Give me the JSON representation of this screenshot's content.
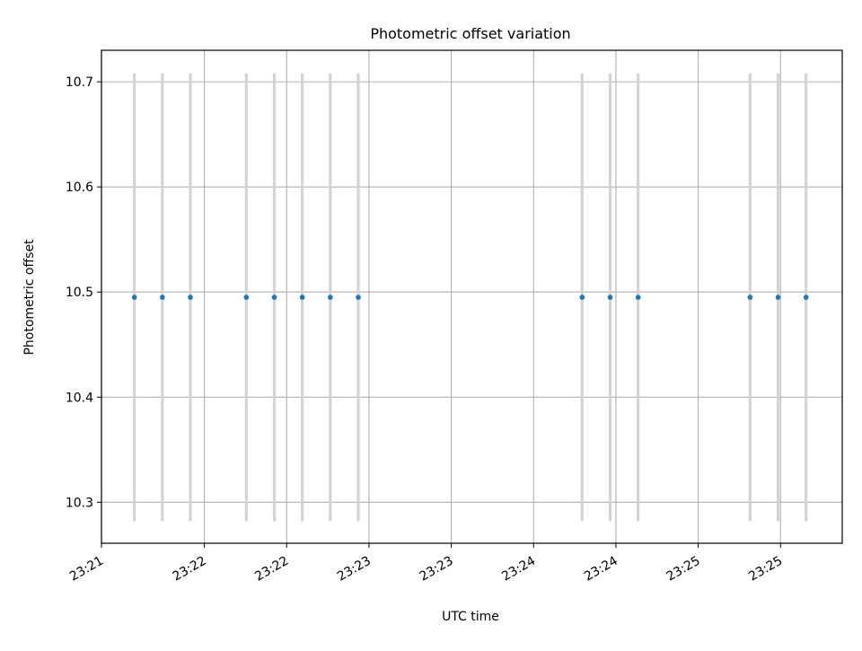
{
  "chart_data": {
    "type": "scatter",
    "title": "Photometric offset variation",
    "xlabel": "UTC time",
    "ylabel": "Photometric offset",
    "x_tick_labels": [
      "23:21",
      "23:22",
      "23:22",
      "23:23",
      "23:23",
      "23:24",
      "23:24",
      "23:25",
      "23:25"
    ],
    "x_tick_minutes": [
      0,
      0.625,
      1.125,
      1.625,
      2.125,
      2.625,
      3.125,
      3.625,
      4.125
    ],
    "xlim_minutes": [
      0,
      4.5
    ],
    "y_ticks": [
      10.3,
      10.4,
      10.5,
      10.6,
      10.7
    ],
    "y_tick_labels": [
      "10.3",
      "10.4",
      "10.5",
      "10.6",
      "10.7"
    ],
    "ylim": [
      10.261,
      10.73
    ],
    "grid": true,
    "series": [
      {
        "x_minutes": [
          0.2,
          0.37,
          0.54,
          0.88,
          1.05,
          1.22,
          1.39,
          1.56,
          2.92,
          3.09,
          3.26,
          3.94,
          4.11,
          4.28
        ],
        "y": [
          10.495,
          10.495,
          10.495,
          10.495,
          10.495,
          10.495,
          10.495,
          10.495,
          10.495,
          10.495,
          10.495,
          10.495,
          10.495,
          10.495
        ],
        "yerr": 0.213,
        "marker_color": "#1f77b4",
        "errorbar_color": "#d3d3d3"
      }
    ]
  }
}
